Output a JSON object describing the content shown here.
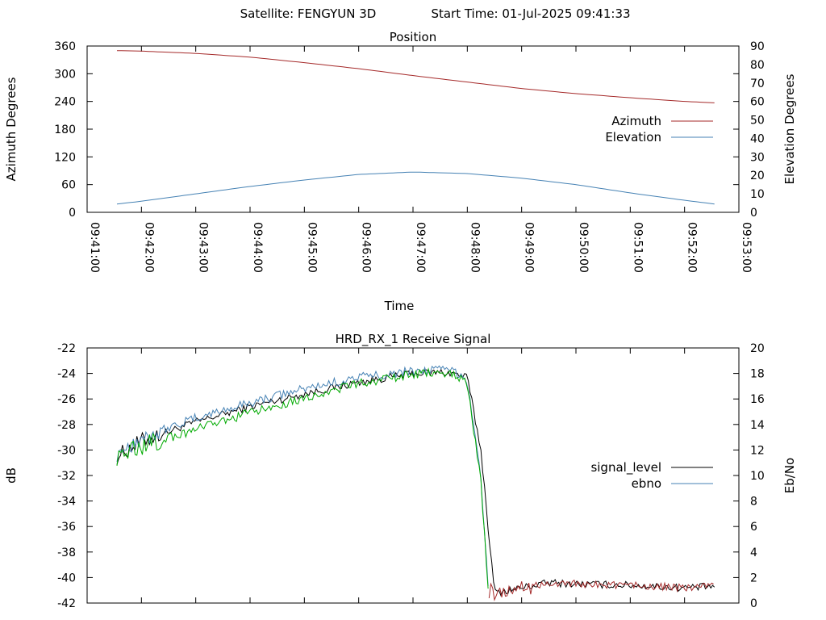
{
  "header": {
    "satellite_label": "Satellite: FENGYUN 3D",
    "start_time_label": "Start Time: 01-Jul-2025 09:41:33"
  },
  "chart_data": [
    {
      "type": "line",
      "title": "Position",
      "xlabel": "Time",
      "ylabel": "Azimuth Degrees",
      "y2label": "Elevation Degrees",
      "xlim": [
        "09:41:00",
        "09:53:00"
      ],
      "ylim": [
        0,
        360
      ],
      "y2lim": [
        0,
        90
      ],
      "x_ticks": [
        "09:41:00",
        "09:42:00",
        "09:43:00",
        "09:44:00",
        "09:45:00",
        "09:46:00",
        "09:47:00",
        "09:48:00",
        "09:49:00",
        "09:50:00",
        "09:51:00",
        "09:52:00",
        "09:53:00"
      ],
      "y_ticks": [
        "0",
        "60",
        "120",
        "180",
        "240",
        "300",
        "360"
      ],
      "y2_ticks": [
        "0",
        "10",
        "20",
        "30",
        "40",
        "50",
        "60",
        "70",
        "80",
        "90"
      ],
      "legend_position": "right",
      "grid": false,
      "series": [
        {
          "name": "Azimuth",
          "axis": "left",
          "color": "#a52a2a",
          "x": [
            "09:41:33",
            "09:42:00",
            "09:43:00",
            "09:44:00",
            "09:45:00",
            "09:46:00",
            "09:47:00",
            "09:48:00",
            "09:49:00",
            "09:50:00",
            "09:51:00",
            "09:52:00",
            "09:52:33"
          ],
          "values": [
            350,
            349,
            344,
            336,
            324,
            311,
            296,
            282,
            268,
            257,
            248,
            240,
            237
          ]
        },
        {
          "name": "Elevation",
          "axis": "right",
          "color": "#4682b4",
          "x": [
            "09:41:33",
            "09:42:00",
            "09:43:00",
            "09:44:00",
            "09:45:00",
            "09:46:00",
            "09:47:00",
            "09:48:00",
            "09:49:00",
            "09:50:00",
            "09:51:00",
            "09:52:00",
            "09:52:33"
          ],
          "values": [
            4.5,
            6,
            10,
            14,
            17.5,
            20.5,
            21.8,
            21,
            18.5,
            15,
            10.5,
            6.5,
            4.5
          ]
        }
      ]
    },
    {
      "type": "line",
      "title": "HRD_RX_1 Receive Signal",
      "xlabel": "",
      "ylabel": "dB",
      "y2label": "Eb/No",
      "xlim": [
        "09:41:00",
        "09:53:00"
      ],
      "ylim": [
        -42,
        -22
      ],
      "y2lim": [
        0,
        20
      ],
      "y_ticks": [
        "-22",
        "-24",
        "-26",
        "-28",
        "-30",
        "-32",
        "-34",
        "-36",
        "-38",
        "-40",
        "-42"
      ],
      "y2_ticks": [
        "0",
        "2",
        "4",
        "6",
        "8",
        "10",
        "12",
        "14",
        "16",
        "18",
        "20"
      ],
      "legend_position": "right",
      "grid": false,
      "series": [
        {
          "name": "signal_level",
          "axis": "left",
          "color": "#000000",
          "x": [
            "09:41:33",
            "09:42:00",
            "09:43:00",
            "09:44:00",
            "09:45:00",
            "09:46:00",
            "09:47:00",
            "09:47:30",
            "09:47:45",
            "09:48:00",
            "09:48:15",
            "09:48:30",
            "09:49:00",
            "09:49:30",
            "09:50:00",
            "09:51:00",
            "09:52:00",
            "09:52:33"
          ],
          "values": [
            -30.5,
            -29.3,
            -27.8,
            -26.6,
            -25.6,
            -24.7,
            -24.0,
            -23.9,
            -24.0,
            -24.3,
            -30.0,
            -41.2,
            -40.8,
            -40.4,
            -40.5,
            -40.6,
            -40.8,
            -40.7
          ]
        },
        {
          "name": "ebno",
          "axis": "right",
          "color": "#4682b4",
          "x": [
            "09:41:33",
            "09:42:00",
            "09:43:00",
            "09:44:00",
            "09:45:00",
            "09:46:00",
            "09:47:00",
            "09:47:30",
            "09:47:45",
            "09:48:00",
            "09:48:15",
            "09:48:24"
          ],
          "values": [
            11.8,
            13.0,
            14.5,
            15.7,
            16.8,
            17.7,
            18.2,
            18.3,
            18.2,
            17.5,
            10.0,
            0.0
          ]
        },
        {
          "color": "#00aa00",
          "axis": "right",
          "x": [
            "09:41:33",
            "09:42:00",
            "09:43:00",
            "09:44:00",
            "09:45:00",
            "09:46:00",
            "09:47:00",
            "09:47:30",
            "09:47:45",
            "09:48:00",
            "09:48:15",
            "09:48:24"
          ],
          "values": [
            11.5,
            12.3,
            13.6,
            14.9,
            16.1,
            17.2,
            17.9,
            18.1,
            18.0,
            17.2,
            9.5,
            0.0
          ]
        },
        {
          "color": "#a52a2a",
          "axis": "left",
          "x": [
            "09:48:24",
            "09:48:30",
            "09:49:00",
            "09:49:30",
            "09:50:00",
            "09:51:00",
            "09:52:00",
            "09:52:33"
          ],
          "values": [
            -41.0,
            -41.2,
            -40.8,
            -40.4,
            -40.5,
            -40.6,
            -40.8,
            -40.7
          ]
        }
      ]
    }
  ]
}
